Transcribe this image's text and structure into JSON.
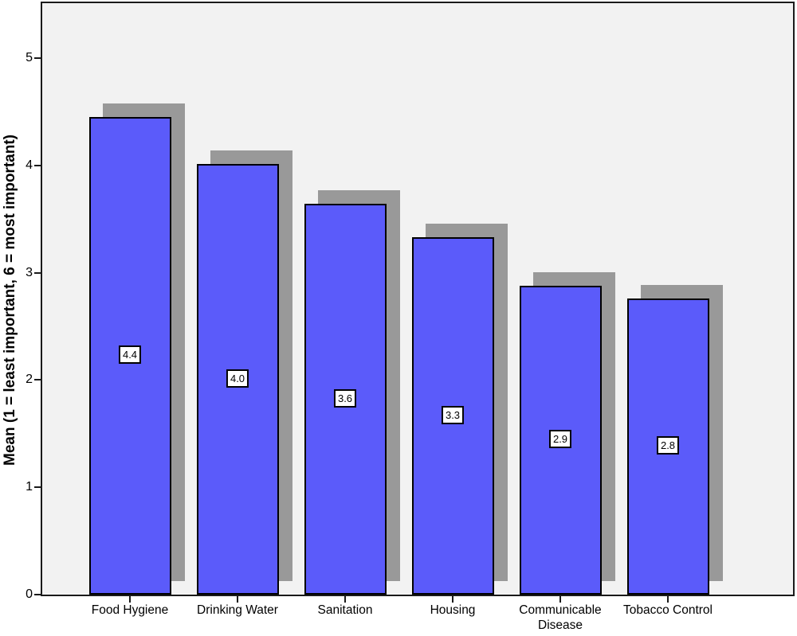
{
  "chart_data": {
    "type": "bar",
    "title": "",
    "xlabel": "",
    "ylabel": "Mean (1 = least important, 6 = most important)",
    "categories": [
      "Food Hygiene",
      "Drinking Water",
      "Sanitation",
      "Housing",
      "Communicable Disease",
      "Tobacco Control"
    ],
    "category_labels": [
      "Food Hygiene",
      "Drinking Water",
      "Sanitation",
      "Housing",
      "Communicable\nDisease",
      "Tobacco Control"
    ],
    "values": [
      4.4,
      4.0,
      3.6,
      3.3,
      2.9,
      2.8
    ],
    "value_labels": [
      "4.4",
      "4.0",
      "3.6",
      "3.3",
      "2.9",
      "2.8"
    ],
    "bar_heights_estimated": [
      4.45,
      4.01,
      3.64,
      3.33,
      2.88,
      2.76
    ],
    "yticks": [
      0,
      1,
      2,
      3,
      4,
      5
    ],
    "ylim": [
      0,
      5.5
    ],
    "grid": false,
    "legend": "none",
    "style": "SPSS-style bars with gray drop shadow offset up-right; boxed value label at bar midpoint",
    "colors": {
      "bar_fill": "#5b5bfa",
      "bar_border": "#000000",
      "shadow": "#999999",
      "plot_background": "#f2f2f2",
      "axis": "#1a1a1a",
      "value_label_background": "#ffffff",
      "value_label_border": "#000000",
      "text": "#000000"
    }
  }
}
